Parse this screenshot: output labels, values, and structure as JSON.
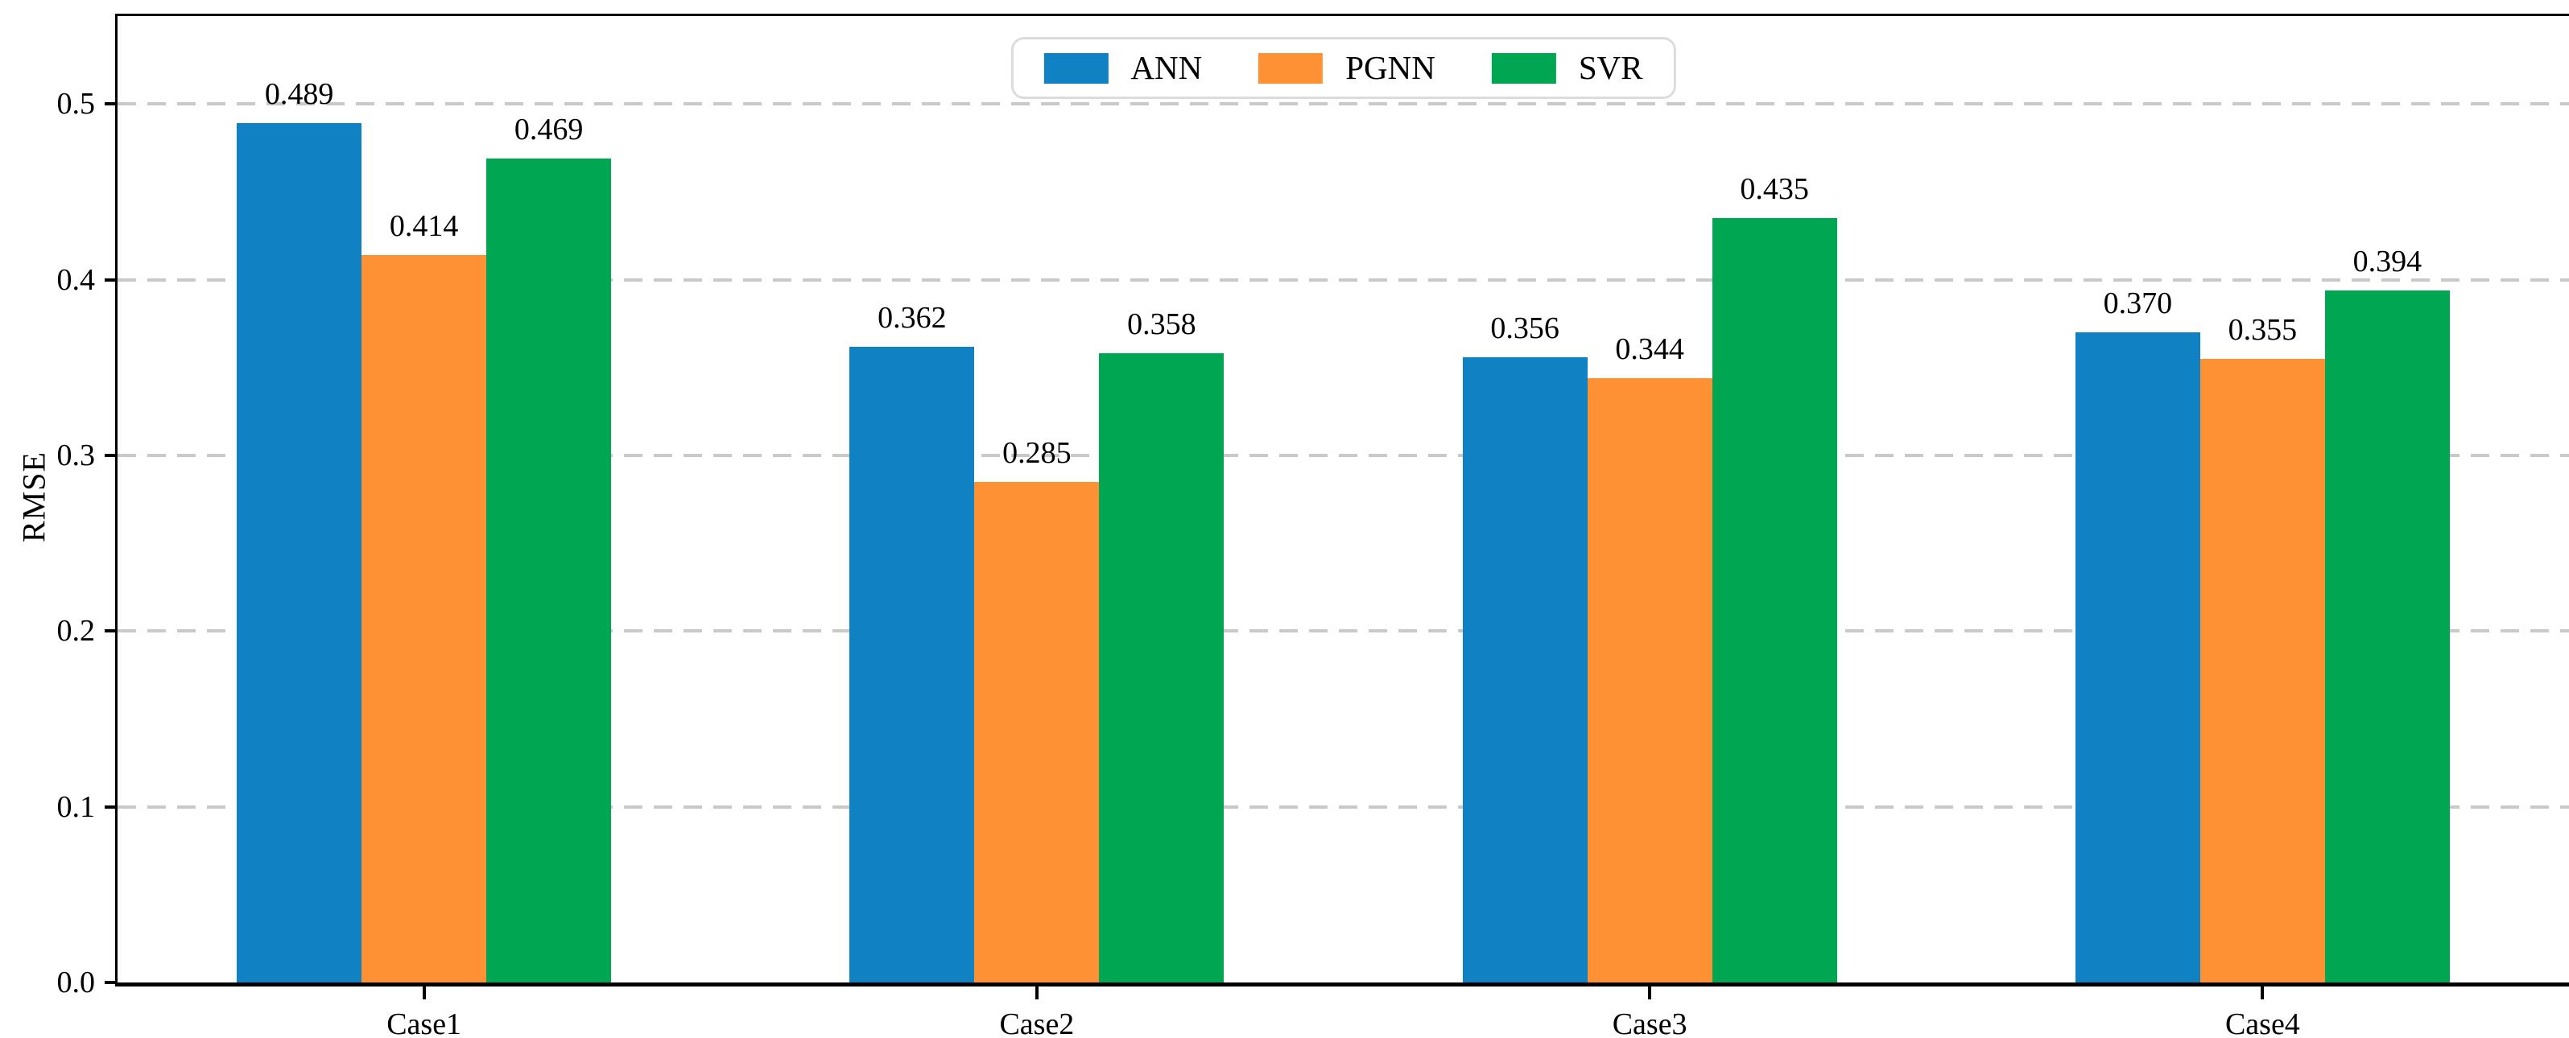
{
  "figure": {
    "background": "#ffffff",
    "axis_color": "#000000",
    "gridline_color": "#c9c9c9",
    "gridline_style": "dashed"
  },
  "chart_data": {
    "type": "bar",
    "title": "",
    "xlabel": "",
    "ylabel": "RMSE",
    "categories": [
      "Case1",
      "Case2",
      "Case3",
      "Case4"
    ],
    "series": [
      {
        "name": "ANN",
        "color": "#1082c4",
        "values": [
          0.489,
          0.362,
          0.356,
          0.37
        ]
      },
      {
        "name": "PGNN",
        "color": "#fd9133",
        "values": [
          0.414,
          0.285,
          0.344,
          0.355
        ]
      },
      {
        "name": "SVR",
        "color": "#00a652",
        "values": [
          0.469,
          0.358,
          0.435,
          0.394
        ]
      }
    ],
    "ylim": [
      0,
      0.55
    ],
    "yticks": [
      0.0,
      0.1,
      0.2,
      0.3,
      0.4,
      0.5
    ],
    "ytick_labels": [
      "0.0",
      "0.1",
      "0.2",
      "0.3",
      "0.4",
      "0.5"
    ],
    "value_label_decimals": 3,
    "grid": "horizontal dashed",
    "legend_position": "upper center"
  }
}
